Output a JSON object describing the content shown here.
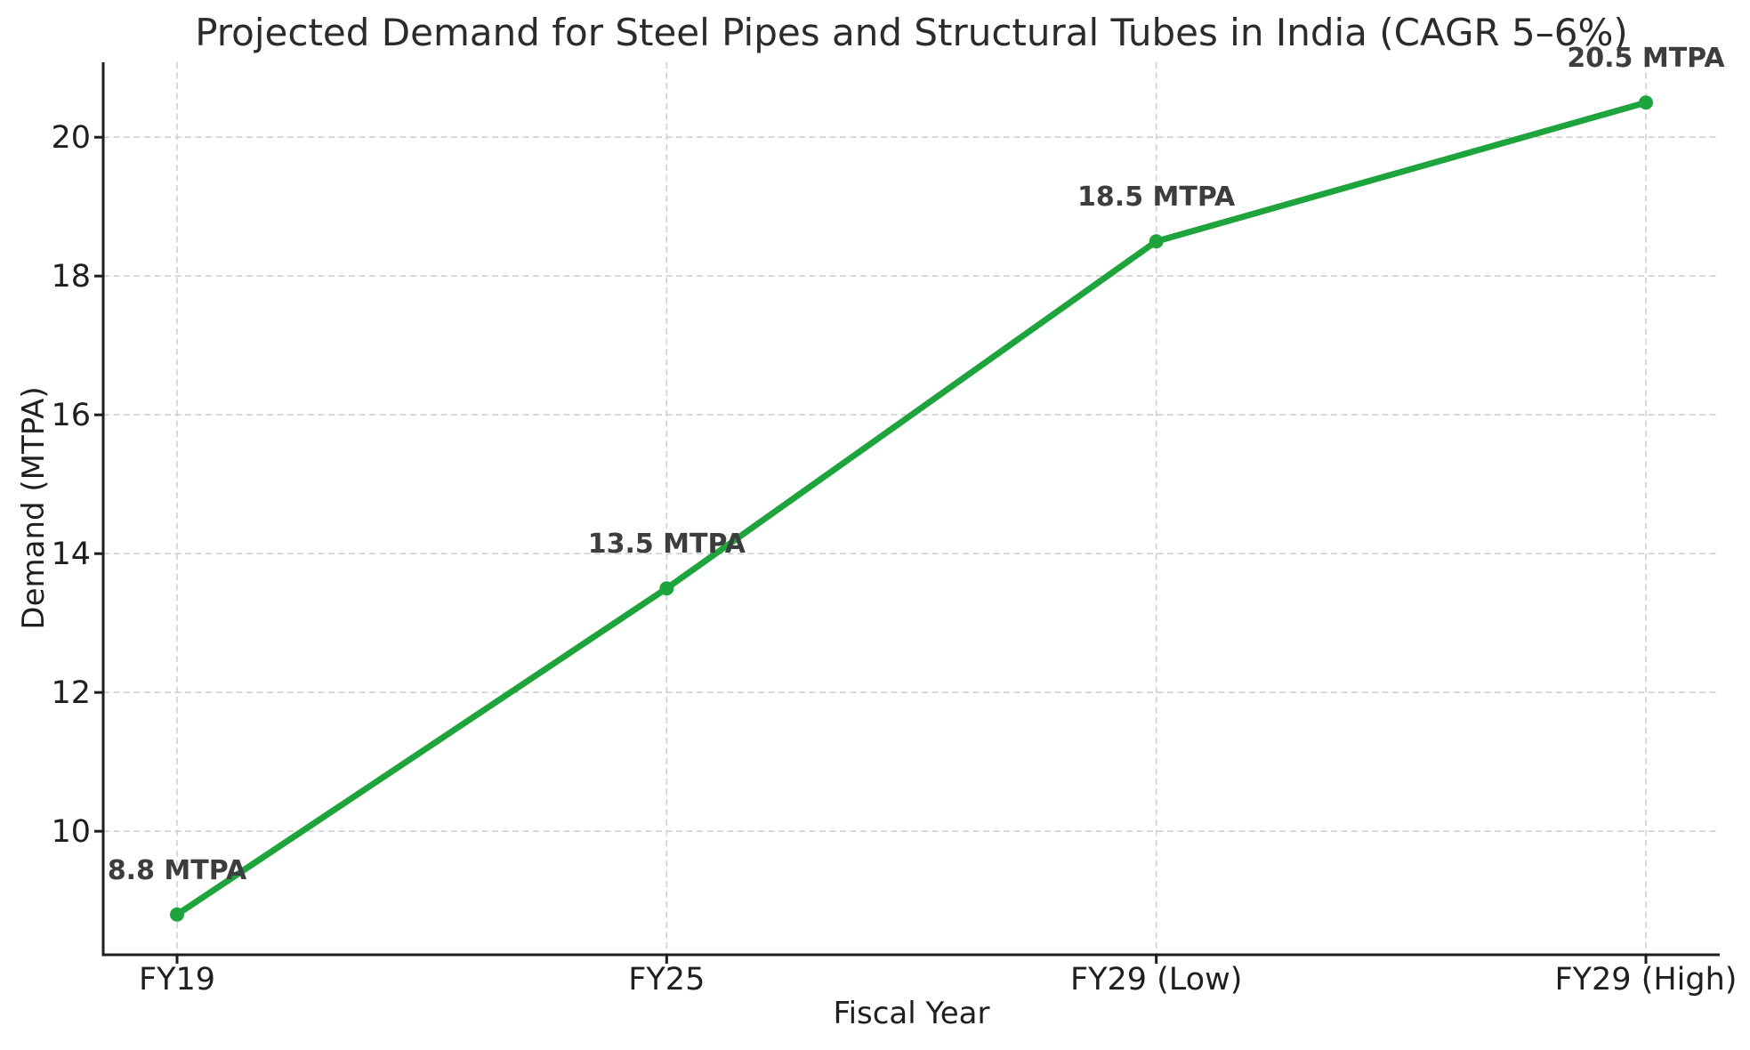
{
  "chart_data": {
    "type": "line",
    "title": "Projected Demand for Steel Pipes and Structural Tubes in India (CAGR 5–6%)",
    "xlabel": "Fiscal Year",
    "ylabel": "Demand (MTPA)",
    "categories": [
      "FY19",
      "FY25",
      "FY29 (Low)",
      "FY29 (High)"
    ],
    "series": [
      {
        "name": "Projected Demand",
        "values": [
          8.8,
          13.5,
          18.5,
          20.5
        ]
      }
    ],
    "point_labels": [
      "8.8 MTPA",
      "13.5 MTPA",
      "18.5 MTPA",
      "20.5 MTPA"
    ],
    "yticks": [
      10,
      12,
      14,
      16,
      18,
      20
    ],
    "ylim": [
      8.22,
      21.08
    ],
    "grid": true,
    "grid_style": "dashed",
    "legend": "none",
    "marker": "circle",
    "colors": {
      "line": "#1ea43c",
      "grid": "#d0d0d0",
      "axis": "#1d1d1d",
      "tick_label": "#1f1f1f",
      "title": "#2b2b2b",
      "annotation": "#3d3d3d"
    }
  }
}
